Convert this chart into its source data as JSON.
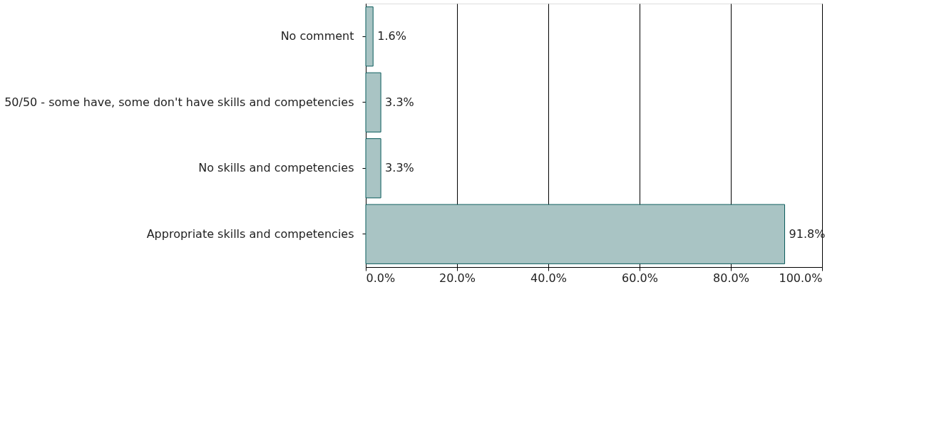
{
  "chart_data": {
    "type": "bar",
    "orientation": "horizontal",
    "categories": [
      "No comment",
      "50/50 - some have, some don't have skills and competencies",
      "No skills and competencies",
      "Appropriate skills and competencies"
    ],
    "values": [
      1.6,
      3.3,
      3.3,
      91.8
    ],
    "value_labels": [
      "1.6%",
      "3.3%",
      "3.3%",
      "91.8%"
    ],
    "color": "#a9c4c4",
    "xlim": [
      0,
      100
    ],
    "xticks": [
      {
        "value": 0,
        "label": "0.0%"
      },
      {
        "value": 20,
        "label": "20.0%"
      },
      {
        "value": 40,
        "label": "40.0%"
      },
      {
        "value": 60,
        "label": "60.0%"
      },
      {
        "value": 80,
        "label": "80.0%"
      },
      {
        "value": 100,
        "label": "100.0%"
      }
    ],
    "grid": "x"
  }
}
